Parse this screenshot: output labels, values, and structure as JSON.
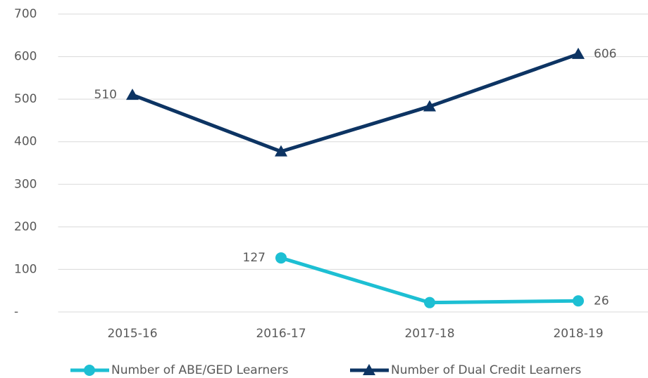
{
  "chart_data": {
    "type": "line",
    "categories": [
      "2015-16",
      "2016-17",
      "2017-18",
      "2018-19"
    ],
    "series": [
      {
        "name": "Number of ABE/GED Learners",
        "color": "#1dbfd3",
        "marker": "circle",
        "values": [
          null,
          127,
          22,
          26
        ],
        "value_labels": [
          null,
          "127",
          null,
          "26"
        ]
      },
      {
        "name": "Number of Dual Credit Learners",
        "color": "#0d3463",
        "marker": "triangle",
        "values": [
          510,
          377,
          483,
          606
        ],
        "value_labels": [
          "510",
          null,
          null,
          "606"
        ]
      }
    ],
    "ylim": [
      0,
      700
    ],
    "yticks": [
      {
        "value": 0,
        "label": "-"
      },
      100,
      200,
      300,
      400,
      500,
      600,
      700
    ],
    "grid": true,
    "legend": "bottom"
  }
}
